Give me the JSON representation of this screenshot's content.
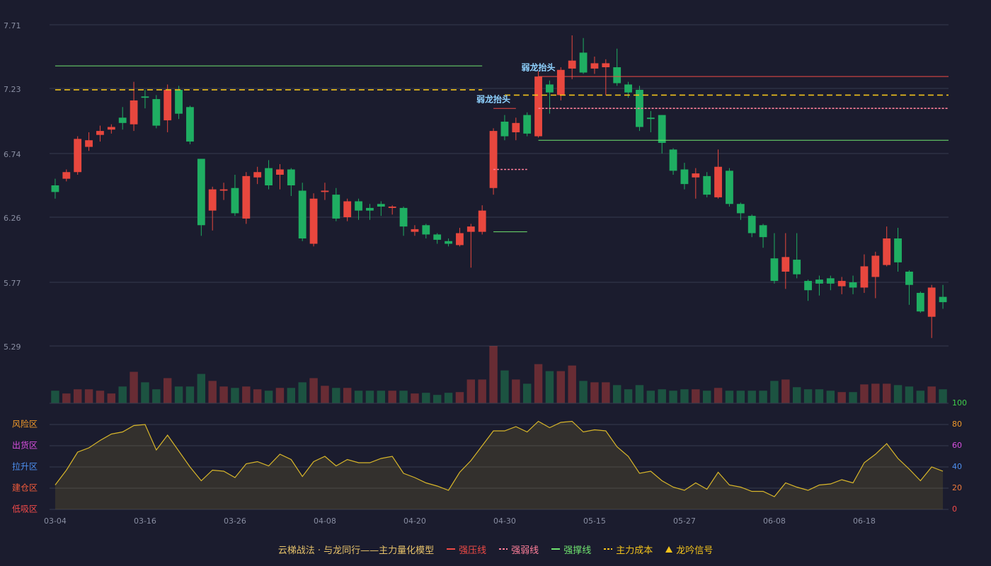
{
  "chart_data": [
    {
      "type": "candlestick",
      "categories": [
        "03-04",
        null,
        null,
        null,
        null,
        null,
        null,
        null,
        "03-16",
        null,
        null,
        null,
        null,
        null,
        null,
        null,
        "03-26",
        null,
        null,
        null,
        null,
        null,
        null,
        null,
        "04-08",
        null,
        null,
        null,
        null,
        null,
        null,
        null,
        "04-20",
        null,
        null,
        null,
        null,
        null,
        null,
        null,
        "04-30",
        null,
        null,
        null,
        null,
        null,
        null,
        null,
        "05-15",
        null,
        null,
        null,
        null,
        null,
        null,
        null,
        "05-27",
        null,
        null,
        null,
        null,
        null,
        null,
        null,
        "06-08",
        null,
        null,
        null,
        null,
        null,
        null,
        null,
        "06-18",
        null,
        null,
        null,
        null,
        null,
        null,
        null
      ],
      "open": [
        6.5,
        6.55,
        6.6,
        6.79,
        6.88,
        6.92,
        7.01,
        6.96,
        7.17,
        7.15,
        6.99,
        7.22,
        7.09,
        6.7,
        6.31,
        6.46,
        6.48,
        6.25,
        6.56,
        6.63,
        6.58,
        6.62,
        6.46,
        6.06,
        6.45,
        6.43,
        6.26,
        6.38,
        6.33,
        6.36,
        6.33,
        6.33,
        6.15,
        6.2,
        6.13,
        6.08,
        6.05,
        6.15,
        6.15,
        6.48,
        6.98,
        6.9,
        7.03,
        6.87,
        7.26,
        7.18,
        7.38,
        7.5,
        7.38,
        7.39,
        7.39,
        7.26,
        7.22,
        7.01,
        7.03,
        6.77,
        6.62,
        6.56,
        6.57,
        6.41,
        6.61,
        6.36,
        6.27,
        6.2,
        5.95,
        5.85,
        5.94,
        5.78,
        5.79,
        5.8,
        5.74,
        5.77,
        5.73,
        5.81,
        5.9,
        6.1,
        5.85,
        5.69,
        5.51,
        5.66
      ],
      "high": [
        6.55,
        6.62,
        6.87,
        6.9,
        6.95,
        6.96,
        7.09,
        7.28,
        7.22,
        7.18,
        7.26,
        7.25,
        7.1,
        6.7,
        6.49,
        6.52,
        6.58,
        6.6,
        6.64,
        6.69,
        6.66,
        6.63,
        6.52,
        6.44,
        6.52,
        6.48,
        6.4,
        6.4,
        6.36,
        6.38,
        6.35,
        6.34,
        6.2,
        6.21,
        6.14,
        6.1,
        6.18,
        6.21,
        6.35,
        6.93,
        7.03,
        7.01,
        7.05,
        7.36,
        7.29,
        7.39,
        7.63,
        7.61,
        7.47,
        7.45,
        7.53,
        7.28,
        7.25,
        7.06,
        7.03,
        6.78,
        6.67,
        6.63,
        6.6,
        6.77,
        6.63,
        6.37,
        6.28,
        6.21,
        6.14,
        6.14,
        6.14,
        5.79,
        5.82,
        5.82,
        5.81,
        5.82,
        5.98,
        6.0,
        6.19,
        6.18,
        5.86,
        5.7,
        5.75,
        5.75
      ],
      "low": [
        6.4,
        6.53,
        6.58,
        6.76,
        6.83,
        6.89,
        6.92,
        6.91,
        7.08,
        6.93,
        6.9,
        7.0,
        6.81,
        6.12,
        6.16,
        6.39,
        6.27,
        6.21,
        6.51,
        6.47,
        6.47,
        6.42,
        6.08,
        6.04,
        6.39,
        6.23,
        6.23,
        6.24,
        6.24,
        6.27,
        6.28,
        6.12,
        6.12,
        6.1,
        6.06,
        6.04,
        6.04,
        5.88,
        6.13,
        6.43,
        6.84,
        6.84,
        6.87,
        6.86,
        7.04,
        7.14,
        7.3,
        7.34,
        7.34,
        7.18,
        7.25,
        7.16,
        6.91,
        6.9,
        6.74,
        6.58,
        6.47,
        6.4,
        6.41,
        6.4,
        6.34,
        6.24,
        6.11,
        6.03,
        5.76,
        5.72,
        5.8,
        5.63,
        5.67,
        5.71,
        5.68,
        5.68,
        5.69,
        5.65,
        5.89,
        5.85,
        5.6,
        5.54,
        5.35,
        5.57
      ],
      "close": [
        6.45,
        6.6,
        6.85,
        6.84,
        6.91,
        6.94,
        6.97,
        7.14,
        7.16,
        6.95,
        7.22,
        7.04,
        6.83,
        6.2,
        6.47,
        6.47,
        6.29,
        6.57,
        6.6,
        6.5,
        6.62,
        6.5,
        6.1,
        6.4,
        6.46,
        6.25,
        6.38,
        6.31,
        6.31,
        6.34,
        6.34,
        6.19,
        6.17,
        6.13,
        6.09,
        6.06,
        6.14,
        6.19,
        6.31,
        6.91,
        6.87,
        6.97,
        6.89,
        7.32,
        7.2,
        7.37,
        7.44,
        7.35,
        7.42,
        7.42,
        7.27,
        7.2,
        6.94,
        7.0,
        6.82,
        6.61,
        6.51,
        6.59,
        6.43,
        6.64,
        6.36,
        6.29,
        6.14,
        6.11,
        5.78,
        5.96,
        5.83,
        5.71,
        5.76,
        5.76,
        5.78,
        5.73,
        5.89,
        5.97,
        6.1,
        5.92,
        5.75,
        5.55,
        5.73,
        5.62
      ],
      "ylim": [
        5.29,
        7.71
      ],
      "yticks": [
        5.29,
        5.77,
        6.26,
        6.74,
        7.23,
        7.71
      ],
      "grid": true,
      "up_color": "#e8473e",
      "down_color": "#1fae62",
      "lines": [
        {
          "name": "强压线",
          "color": "#ef4a45",
          "dash": false,
          "segments": [
            {
              "from": 39,
              "to": 41,
              "value": 7.08
            },
            {
              "from": 43,
              "to": 79,
              "value": 7.32
            }
          ]
        },
        {
          "name": "强弱线",
          "color": "#ff7f9a",
          "dash": true,
          "segments": [
            {
              "from": 39,
              "to": 42,
              "value": 6.62
            },
            {
              "from": 43,
              "to": 79,
              "value": 7.08
            }
          ]
        },
        {
          "name": "强撑线",
          "color": "#6fe36f",
          "dash": false,
          "segments": [
            {
              "from": 0,
              "to": 38,
              "value": 7.4
            },
            {
              "from": 39,
              "to": 42,
              "value": 6.15
            },
            {
              "from": 43,
              "to": 79,
              "value": 6.84
            }
          ]
        },
        {
          "name": "主力成本",
          "color": "#f2c21b",
          "dash": true,
          "segments": [
            {
              "from": 0,
              "to": 38,
              "value": 7.22
            },
            {
              "from": 40,
              "to": 79,
              "value": 7.18
            }
          ]
        }
      ],
      "signals": [
        {
          "label": "弱龙抬头",
          "at": 39,
          "value": 7.08
        },
        {
          "label": "弱龙抬头",
          "at": 43,
          "value": 7.32
        }
      ],
      "legend_title": "云梯战法 · 与龙同行——主力量化模型",
      "signal_legend": {
        "label": "龙吟信号",
        "color": "#f2c21b"
      }
    },
    {
      "type": "volume",
      "values": [
        18,
        14,
        20,
        20,
        18,
        14,
        24,
        45,
        30,
        20,
        36,
        24,
        24,
        42,
        32,
        24,
        22,
        24,
        20,
        18,
        22,
        22,
        30,
        36,
        25,
        22,
        22,
        18,
        18,
        18,
        18,
        18,
        14,
        15,
        12,
        15,
        16,
        34,
        34,
        82,
        47,
        34,
        28,
        56,
        46,
        46,
        54,
        32,
        30,
        30,
        26,
        20,
        26,
        18,
        20,
        18,
        20,
        20,
        18,
        22,
        18,
        18,
        18,
        18,
        32,
        34,
        23,
        20,
        20,
        18,
        16,
        16,
        27,
        28,
        28,
        26,
        24,
        18,
        24,
        20
      ]
    },
    {
      "type": "area",
      "values": [
        23,
        37,
        54,
        58,
        65,
        71,
        73,
        79,
        80,
        56,
        70,
        55,
        40,
        27,
        37,
        36,
        30,
        43,
        45,
        41,
        52,
        47,
        31,
        45,
        50,
        41,
        47,
        44,
        44,
        48,
        50,
        34,
        30,
        25,
        22,
        18,
        35,
        46,
        60,
        74,
        74,
        78,
        73,
        83,
        77,
        82,
        83,
        73,
        75,
        74,
        59,
        50,
        34,
        36,
        27,
        21,
        18,
        25,
        19,
        35,
        23,
        21,
        17,
        17,
        12,
        25,
        21,
        18,
        23,
        24,
        28,
        25,
        44,
        52,
        62,
        48,
        38,
        27,
        40,
        36
      ],
      "ylim": [
        0,
        100
      ],
      "yticks": [
        0,
        20,
        40,
        60,
        80,
        100
      ],
      "ytick_colors": [
        "#f24a4a",
        "#f07a3a",
        "#4d8ff0",
        "#d84fe0",
        "#f0992a",
        "#3fcf4a"
      ],
      "color": "#d8b62a",
      "zones": [
        {
          "label": "风险区",
          "value": 80,
          "color": "#f0992a"
        },
        {
          "label": "出货区",
          "value": 60,
          "color": "#d84fe0"
        },
        {
          "label": "拉升区",
          "value": 40,
          "color": "#4d8ff0"
        },
        {
          "label": "建仓区",
          "value": 20,
          "color": "#f05a3a"
        },
        {
          "label": "低吸区",
          "value": 0,
          "color": "#f24a4a"
        }
      ]
    }
  ]
}
